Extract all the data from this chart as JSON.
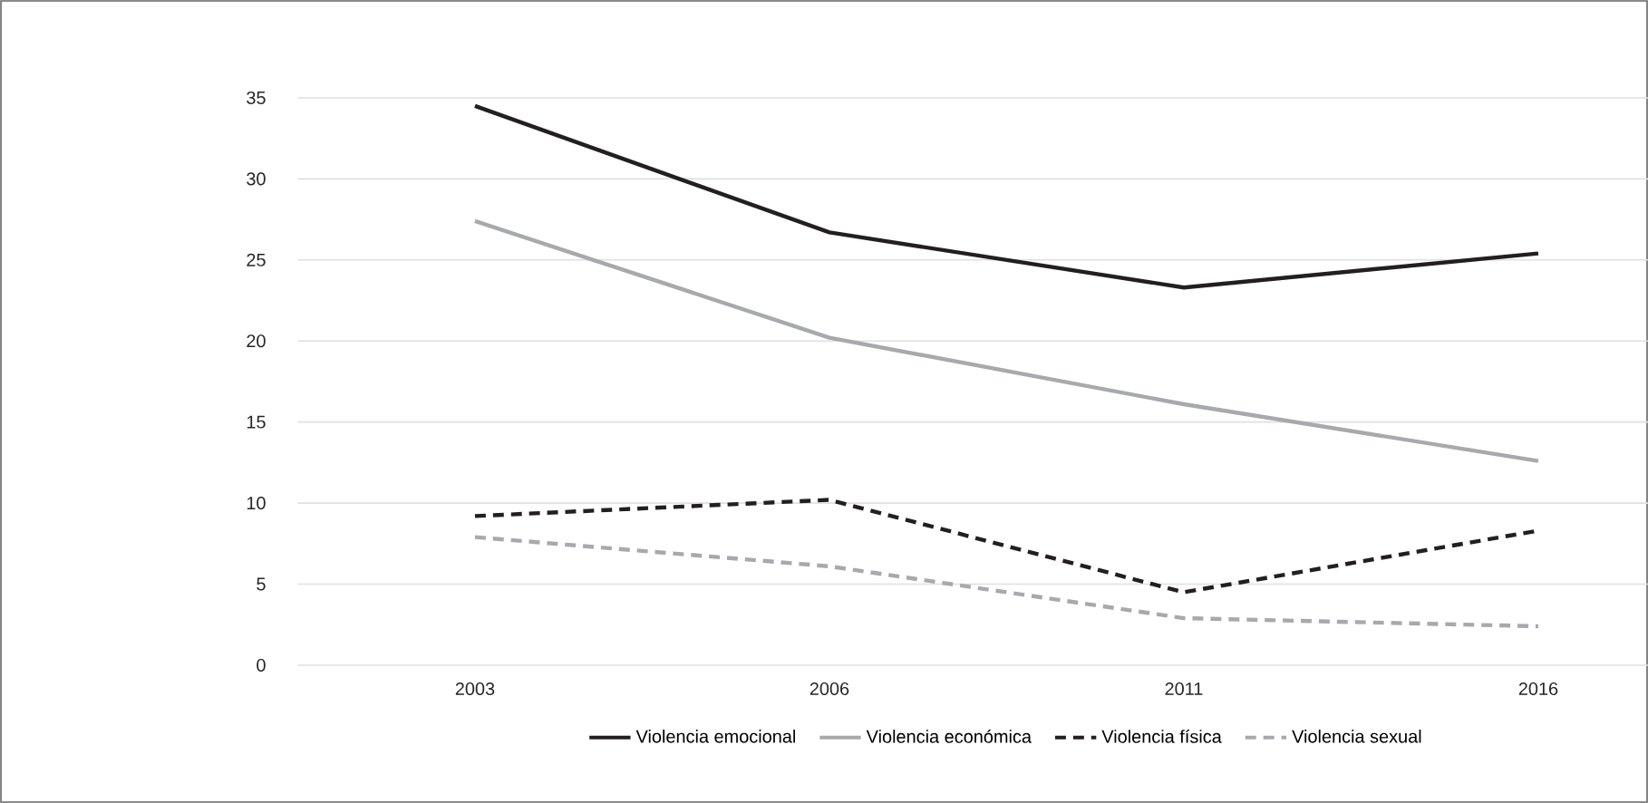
{
  "chart_data": {
    "type": "line",
    "categories": [
      "2003",
      "2006",
      "2011",
      "2016"
    ],
    "series": [
      {
        "name": "Violencia emocional",
        "color": "#231f20",
        "line_style": "solid",
        "values": [
          34.5,
          26.7,
          23.3,
          25.4
        ]
      },
      {
        "name": "Violencia económica",
        "color": "#a7a9ac",
        "line_style": "solid",
        "values": [
          27.4,
          20.2,
          16.1,
          12.6
        ]
      },
      {
        "name": "Violencia física",
        "color": "#231f20",
        "line_style": "dashed",
        "values": [
          9.2,
          10.2,
          4.5,
          8.3
        ]
      },
      {
        "name": "Violencia sexual",
        "color": "#a7a9ac",
        "line_style": "dashed",
        "values": [
          7.9,
          6.1,
          2.9,
          2.4
        ]
      }
    ],
    "ylim": [
      0,
      35
    ],
    "yticks": [
      0,
      5,
      10,
      15,
      20,
      25,
      30,
      35
    ],
    "grid": "y",
    "legend": "bottom",
    "marker": "none"
  }
}
